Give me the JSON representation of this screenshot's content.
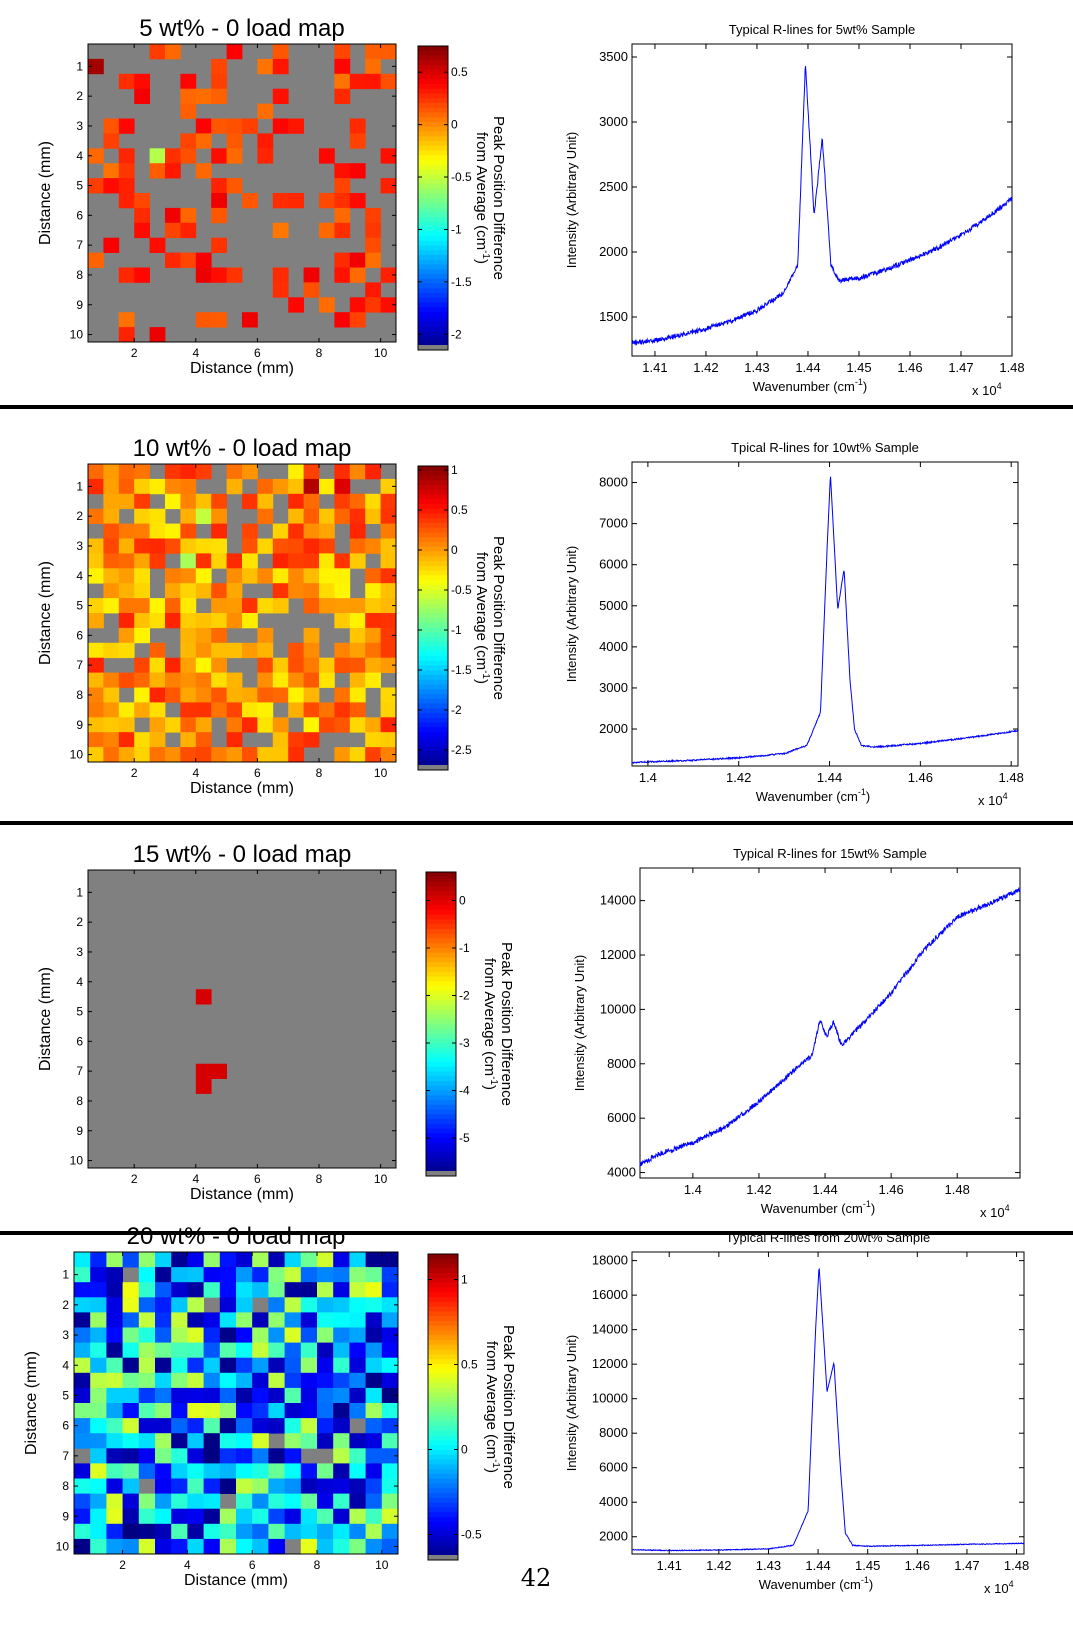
{
  "page_number": "42",
  "colors": {
    "background": "#ffffff",
    "gray_missing": "#808080",
    "line": "#0000ff",
    "separator": "#000000"
  },
  "chart_data": [
    {
      "type": "heatmap",
      "title": "5 wt% - 0 load map",
      "xlabel": "Distance (mm)",
      "ylabel": "Distance (mm)",
      "x_ticks": [
        2,
        4,
        6,
        8,
        10
      ],
      "y_ticks": [
        1,
        2,
        3,
        4,
        5,
        6,
        7,
        8,
        9,
        10
      ],
      "xlim": [
        0.5,
        10.5
      ],
      "ylim": [
        0.25,
        10.25
      ],
      "grid_size": 20,
      "colorbar": {
        "label_line1": "Peak Position Difference",
        "label_line2": "from Average (cm",
        "label_sup": "-1",
        "label_end": ")",
        "range": [
          -2.15,
          0.75
        ],
        "ticks": [
          0.5,
          0,
          -0.5,
          -1,
          -1.5,
          -2
        ],
        "tick_labels": [
          "0.5",
          "0",
          "-0.5",
          "-1",
          "-1.5",
          "-2"
        ]
      },
      "fill_fraction": 0.32,
      "value_distribution": [
        0.05,
        0.45
      ],
      "clusters": [
        {
          "r": 0.5,
          "c": 0.25,
          "v": 0.65
        }
      ],
      "extra_cells": [
        {
          "r": 7,
          "c": 4,
          "v": -0.55
        }
      ]
    },
    {
      "type": "line",
      "title": "Typical R-lines for 5wt% Sample",
      "xlabel": "Wavenumber (cm",
      "xlabel_sup": "-1",
      "xlabel_end": ")",
      "ylabel": "Intensity (Arbitrary Unit)",
      "x_multiplier": "x 10",
      "x_multiplier_sup": "4",
      "xlim": [
        1.4055,
        1.48
      ],
      "ylim": [
        1200,
        3600
      ],
      "x_ticks": [
        1.41,
        1.42,
        1.43,
        1.44,
        1.45,
        1.46,
        1.47,
        1.48
      ],
      "x_tick_labels": [
        "1.41",
        "1.42",
        "1.43",
        "1.44",
        "1.45",
        "1.46",
        "1.47",
        "1.48"
      ],
      "y_ticks": [
        1500,
        2000,
        2500,
        3000,
        3500
      ],
      "y_tick_labels": [
        "1500",
        "2000",
        "2500",
        "3000",
        "3500"
      ],
      "series": [
        {
          "points": [
            [
              1.4055,
              1300
            ],
            [
              1.41,
              1320
            ],
            [
              1.415,
              1360
            ],
            [
              1.42,
              1410
            ],
            [
              1.425,
              1470
            ],
            [
              1.43,
              1550
            ],
            [
              1.435,
              1680
            ],
            [
              1.438,
              1900
            ],
            [
              1.4395,
              3450
            ],
            [
              1.4412,
              2280
            ],
            [
              1.4428,
              2880
            ],
            [
              1.4445,
              1900
            ],
            [
              1.446,
              1780
            ],
            [
              1.45,
              1800
            ],
            [
              1.455,
              1860
            ],
            [
              1.46,
              1940
            ],
            [
              1.465,
              2020
            ],
            [
              1.47,
              2130
            ],
            [
              1.475,
              2260
            ],
            [
              1.48,
              2410
            ]
          ],
          "noise": 18
        }
      ]
    },
    {
      "type": "heatmap",
      "title": "10 wt% - 0 load map",
      "xlabel": "Distance (mm)",
      "ylabel": "Distance (mm)",
      "x_ticks": [
        2,
        4,
        6,
        8,
        10
      ],
      "y_ticks": [
        1,
        2,
        3,
        4,
        5,
        6,
        7,
        8,
        9,
        10
      ],
      "xlim": [
        0.5,
        10.5
      ],
      "ylim": [
        0.25,
        10.25
      ],
      "grid_size": 20,
      "colorbar": {
        "label_line1": "Peak Position Difference",
        "label_line2": "from Average (cm",
        "label_sup": "-1",
        "label_end": ")",
        "range": [
          -2.75,
          1.05
        ],
        "ticks": [
          1,
          0.5,
          0,
          -0.5,
          -1,
          -1.5,
          -2,
          -2.5
        ],
        "tick_labels": [
          "1",
          "0.5",
          "0",
          "-0.5",
          "-1",
          "-1.5",
          "-2",
          "-2.5"
        ]
      },
      "fill_fraction": 0.8,
      "value_distribution": [
        -0.35,
        0.45
      ],
      "clusters": [
        {
          "r": 1,
          "c": 14,
          "v": 0.85
        },
        {
          "r": 1,
          "c": 16,
          "v": 0.7
        }
      ],
      "extra_cells": [
        {
          "r": 3,
          "c": 7,
          "v": -0.6
        },
        {
          "r": 6,
          "c": 6,
          "v": -0.7
        }
      ]
    },
    {
      "type": "line",
      "title": "Tpical R-lines for 10wt% Sample",
      "xlabel": "Wavenumber (cm",
      "xlabel_sup": "-1",
      "xlabel_end": ")",
      "ylabel": "Intensity (Arbitrary Unit)",
      "x_multiplier": "x 10",
      "x_multiplier_sup": "4",
      "xlim": [
        1.3965,
        1.4815
      ],
      "ylim": [
        1100,
        8500
      ],
      "x_ticks": [
        1.4,
        1.42,
        1.44,
        1.46,
        1.48
      ],
      "x_tick_labels": [
        "1.4",
        "1.42",
        "1.44",
        "1.46",
        "1.48"
      ],
      "y_ticks": [
        2000,
        3000,
        4000,
        5000,
        6000,
        7000,
        8000
      ],
      "y_tick_labels": [
        "2000",
        "3000",
        "4000",
        "5000",
        "6000",
        "7000",
        "8000"
      ],
      "series": [
        {
          "points": [
            [
              1.3965,
              1180
            ],
            [
              1.4,
              1200
            ],
            [
              1.41,
              1240
            ],
            [
              1.42,
              1300
            ],
            [
              1.43,
              1400
            ],
            [
              1.435,
              1600
            ],
            [
              1.438,
              2400
            ],
            [
              1.4395,
              6500
            ],
            [
              1.4402,
              8200
            ],
            [
              1.4418,
              4900
            ],
            [
              1.4432,
              5900
            ],
            [
              1.4445,
              3200
            ],
            [
              1.4455,
              2000
            ],
            [
              1.447,
              1600
            ],
            [
              1.45,
              1560
            ],
            [
              1.46,
              1650
            ],
            [
              1.47,
              1780
            ],
            [
              1.4815,
              1960
            ]
          ],
          "noise": 18
        }
      ]
    },
    {
      "type": "heatmap",
      "title": "15 wt% - 0 load map",
      "xlabel": "Distance (mm)",
      "ylabel": "Distance (mm)",
      "x_ticks": [
        2,
        4,
        6,
        8,
        10
      ],
      "y_ticks": [
        1,
        2,
        3,
        4,
        5,
        6,
        7,
        8,
        9,
        10
      ],
      "xlim": [
        0.5,
        10.5
      ],
      "ylim": [
        0.25,
        10.25
      ],
      "grid_size": 20,
      "colorbar": {
        "label_line1": "Peak Position Difference",
        "label_line2": "from Average (cm",
        "label_sup": "-1",
        "label_end": ")",
        "range": [
          -5.8,
          0.6
        ],
        "ticks": [
          0,
          -1,
          -2,
          -3,
          -4,
          -5
        ],
        "tick_labels": [
          "0",
          "-1",
          "-2",
          "-3",
          "-4",
          "-5"
        ]
      },
      "fill_fraction": 0,
      "value_distribution": [
        0,
        0
      ],
      "clusters": [],
      "extra_cells": [
        {
          "r": 8,
          "c": 7,
          "v": 0.05
        },
        {
          "r": 13,
          "c": 7,
          "v": 0.05
        },
        {
          "r": 13,
          "c": 8,
          "v": 0.05
        },
        {
          "r": 14,
          "c": 7,
          "v": 0.05
        }
      ]
    },
    {
      "type": "line",
      "title": "Typical R-lines for 15wt% Sample",
      "xlabel": "Wavenumber (cm",
      "xlabel_sup": "-1",
      "xlabel_end": ")",
      "ylabel": "Intensity (Arbitrary Unit)",
      "x_multiplier": "x 10",
      "x_multiplier_sup": "4",
      "xlim": [
        1.384,
        1.499
      ],
      "ylim": [
        3800,
        15200
      ],
      "x_ticks": [
        1.4,
        1.42,
        1.44,
        1.46,
        1.48
      ],
      "x_tick_labels": [
        "1.4",
        "1.42",
        "1.44",
        "1.46",
        "1.48"
      ],
      "y_ticks": [
        4000,
        6000,
        8000,
        10000,
        12000,
        14000
      ],
      "y_tick_labels": [
        "4000",
        "6000",
        "8000",
        "10000",
        "12000",
        "14000"
      ],
      "series": [
        {
          "points": [
            [
              1.384,
              4300
            ],
            [
              1.39,
              4700
            ],
            [
              1.4,
              5100
            ],
            [
              1.41,
              5700
            ],
            [
              1.42,
              6600
            ],
            [
              1.43,
              7700
            ],
            [
              1.436,
              8300
            ],
            [
              1.4385,
              9600
            ],
            [
              1.4405,
              9000
            ],
            [
              1.4425,
              9500
            ],
            [
              1.445,
              8700
            ],
            [
              1.45,
              9300
            ],
            [
              1.46,
              10600
            ],
            [
              1.47,
              12200
            ],
            [
              1.48,
              13400
            ],
            [
              1.49,
              13900
            ],
            [
              1.499,
              14400
            ]
          ],
          "noise": 90
        }
      ]
    },
    {
      "type": "heatmap",
      "title": "20 wt% - 0 load map",
      "xlabel": "Distance (mm)",
      "ylabel": "Distance (mm)",
      "x_ticks": [
        2,
        4,
        6,
        8,
        10
      ],
      "y_ticks": [
        1,
        2,
        3,
        4,
        5,
        6,
        7,
        8,
        9,
        10
      ],
      "xlim": [
        0.5,
        10.5
      ],
      "ylim": [
        0.25,
        10.25
      ],
      "grid_size": 20,
      "colorbar": {
        "label_line1": "Peak Position Difference",
        "label_line2": "from Average (cm",
        "label_sup": "-1",
        "label_end": ")",
        "range": [
          -0.65,
          1.15
        ],
        "ticks": [
          1,
          0.5,
          0,
          -0.5
        ],
        "tick_labels": [
          "1",
          "0.5",
          "0",
          "-0.5"
        ]
      },
      "fill_fraction": 0.97,
      "value_distribution": [
        -0.65,
        0.45
      ],
      "clusters": [],
      "extra_cells": []
    },
    {
      "type": "line",
      "title": "Typical R-lines from 20wt% Sample",
      "xlabel": "Wavenumber (cm",
      "xlabel_sup": "-1",
      "xlabel_end": ")",
      "ylabel": "Intensity (Arbitrary Unit)",
      "x_multiplier": "x 10",
      "x_multiplier_sup": "4",
      "xlim": [
        1.4025,
        1.4815
      ],
      "ylim": [
        1000,
        18500
      ],
      "x_ticks": [
        1.41,
        1.42,
        1.43,
        1.44,
        1.45,
        1.46,
        1.47,
        1.48
      ],
      "x_tick_labels": [
        "1.41",
        "1.42",
        "1.43",
        "1.44",
        "1.45",
        "1.46",
        "1.47",
        "1.48"
      ],
      "y_ticks": [
        2000,
        4000,
        6000,
        8000,
        10000,
        12000,
        14000,
        16000,
        18000
      ],
      "y_tick_labels": [
        "2000",
        "4000",
        "6000",
        "8000",
        "10000",
        "12000",
        "14000",
        "16000",
        "18000"
      ],
      "series": [
        {
          "points": [
            [
              1.4025,
              1250
            ],
            [
              1.41,
              1200
            ],
            [
              1.42,
              1230
            ],
            [
              1.43,
              1300
            ],
            [
              1.435,
              1500
            ],
            [
              1.438,
              3500
            ],
            [
              1.4395,
              14000
            ],
            [
              1.4402,
              17700
            ],
            [
              1.4418,
              10400
            ],
            [
              1.4432,
              12100
            ],
            [
              1.4445,
              6000
            ],
            [
              1.4455,
              2200
            ],
            [
              1.447,
              1500
            ],
            [
              1.45,
              1450
            ],
            [
              1.46,
              1500
            ],
            [
              1.47,
              1560
            ],
            [
              1.4815,
              1620
            ]
          ],
          "noise": 25
        }
      ]
    }
  ]
}
